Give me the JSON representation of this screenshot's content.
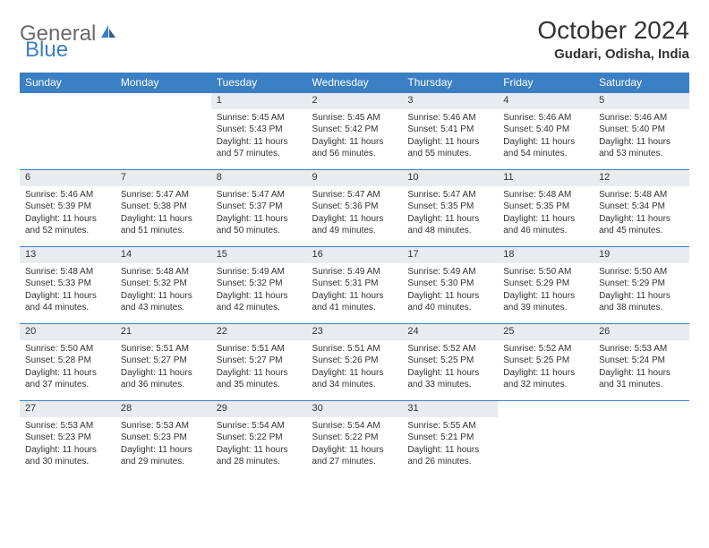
{
  "logo": {
    "general": "General",
    "blue": "Blue"
  },
  "title": "October 2024",
  "location": "Gudari, Odisha, India",
  "colors": {
    "header_bg": "#3b7fc4",
    "header_text": "#ffffff",
    "daynum_bg": "#e9ecef",
    "border": "#3b7fc4",
    "text": "#333333",
    "logo_gray": "#6b6b6b",
    "logo_blue": "#3b7fc4"
  },
  "dayNames": [
    "Sunday",
    "Monday",
    "Tuesday",
    "Wednesday",
    "Thursday",
    "Friday",
    "Saturday"
  ],
  "weeks": [
    [
      null,
      null,
      {
        "d": "1",
        "sr": "5:45 AM",
        "ss": "5:43 PM",
        "dl": "11 hours and 57 minutes."
      },
      {
        "d": "2",
        "sr": "5:45 AM",
        "ss": "5:42 PM",
        "dl": "11 hours and 56 minutes."
      },
      {
        "d": "3",
        "sr": "5:46 AM",
        "ss": "5:41 PM",
        "dl": "11 hours and 55 minutes."
      },
      {
        "d": "4",
        "sr": "5:46 AM",
        "ss": "5:40 PM",
        "dl": "11 hours and 54 minutes."
      },
      {
        "d": "5",
        "sr": "5:46 AM",
        "ss": "5:40 PM",
        "dl": "11 hours and 53 minutes."
      }
    ],
    [
      {
        "d": "6",
        "sr": "5:46 AM",
        "ss": "5:39 PM",
        "dl": "11 hours and 52 minutes."
      },
      {
        "d": "7",
        "sr": "5:47 AM",
        "ss": "5:38 PM",
        "dl": "11 hours and 51 minutes."
      },
      {
        "d": "8",
        "sr": "5:47 AM",
        "ss": "5:37 PM",
        "dl": "11 hours and 50 minutes."
      },
      {
        "d": "9",
        "sr": "5:47 AM",
        "ss": "5:36 PM",
        "dl": "11 hours and 49 minutes."
      },
      {
        "d": "10",
        "sr": "5:47 AM",
        "ss": "5:35 PM",
        "dl": "11 hours and 48 minutes."
      },
      {
        "d": "11",
        "sr": "5:48 AM",
        "ss": "5:35 PM",
        "dl": "11 hours and 46 minutes."
      },
      {
        "d": "12",
        "sr": "5:48 AM",
        "ss": "5:34 PM",
        "dl": "11 hours and 45 minutes."
      }
    ],
    [
      {
        "d": "13",
        "sr": "5:48 AM",
        "ss": "5:33 PM",
        "dl": "11 hours and 44 minutes."
      },
      {
        "d": "14",
        "sr": "5:48 AM",
        "ss": "5:32 PM",
        "dl": "11 hours and 43 minutes."
      },
      {
        "d": "15",
        "sr": "5:49 AM",
        "ss": "5:32 PM",
        "dl": "11 hours and 42 minutes."
      },
      {
        "d": "16",
        "sr": "5:49 AM",
        "ss": "5:31 PM",
        "dl": "11 hours and 41 minutes."
      },
      {
        "d": "17",
        "sr": "5:49 AM",
        "ss": "5:30 PM",
        "dl": "11 hours and 40 minutes."
      },
      {
        "d": "18",
        "sr": "5:50 AM",
        "ss": "5:29 PM",
        "dl": "11 hours and 39 minutes."
      },
      {
        "d": "19",
        "sr": "5:50 AM",
        "ss": "5:29 PM",
        "dl": "11 hours and 38 minutes."
      }
    ],
    [
      {
        "d": "20",
        "sr": "5:50 AM",
        "ss": "5:28 PM",
        "dl": "11 hours and 37 minutes."
      },
      {
        "d": "21",
        "sr": "5:51 AM",
        "ss": "5:27 PM",
        "dl": "11 hours and 36 minutes."
      },
      {
        "d": "22",
        "sr": "5:51 AM",
        "ss": "5:27 PM",
        "dl": "11 hours and 35 minutes."
      },
      {
        "d": "23",
        "sr": "5:51 AM",
        "ss": "5:26 PM",
        "dl": "11 hours and 34 minutes."
      },
      {
        "d": "24",
        "sr": "5:52 AM",
        "ss": "5:25 PM",
        "dl": "11 hours and 33 minutes."
      },
      {
        "d": "25",
        "sr": "5:52 AM",
        "ss": "5:25 PM",
        "dl": "11 hours and 32 minutes."
      },
      {
        "d": "26",
        "sr": "5:53 AM",
        "ss": "5:24 PM",
        "dl": "11 hours and 31 minutes."
      }
    ],
    [
      {
        "d": "27",
        "sr": "5:53 AM",
        "ss": "5:23 PM",
        "dl": "11 hours and 30 minutes."
      },
      {
        "d": "28",
        "sr": "5:53 AM",
        "ss": "5:23 PM",
        "dl": "11 hours and 29 minutes."
      },
      {
        "d": "29",
        "sr": "5:54 AM",
        "ss": "5:22 PM",
        "dl": "11 hours and 28 minutes."
      },
      {
        "d": "30",
        "sr": "5:54 AM",
        "ss": "5:22 PM",
        "dl": "11 hours and 27 minutes."
      },
      {
        "d": "31",
        "sr": "5:55 AM",
        "ss": "5:21 PM",
        "dl": "11 hours and 26 minutes."
      },
      null,
      null
    ]
  ],
  "labels": {
    "sunrise": "Sunrise:",
    "sunset": "Sunset:",
    "daylight": "Daylight:"
  }
}
